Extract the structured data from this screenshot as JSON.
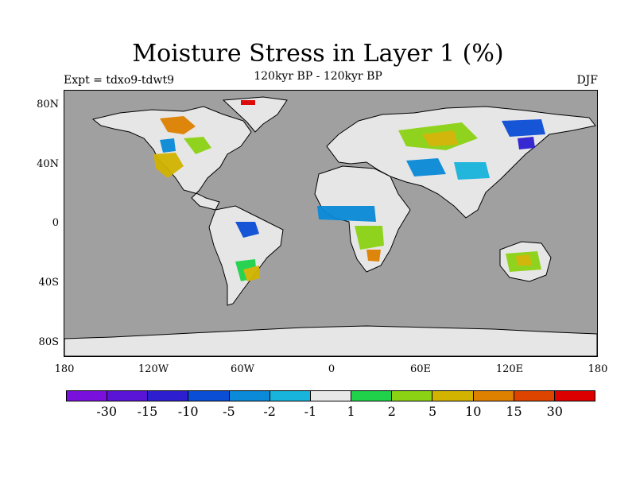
{
  "title": "Moisture Stress in Layer 1 (%)",
  "subtitle": "120kyr BP - 120kyr BP",
  "experiment": "Expt = tdxo9-tdwt9",
  "season": "DJF",
  "ocean_color": "#a0a0a0",
  "land_color": "#e6e6e6",
  "yticks": [
    "80N",
    "40N",
    "0",
    "40S",
    "80S"
  ],
  "xticks": [
    "180",
    "120W",
    "60W",
    "0",
    "60E",
    "120E",
    "180"
  ],
  "colorbar": {
    "colors": [
      "#7a10dc",
      "#5a14d6",
      "#2d1fd0",
      "#0a4ed6",
      "#0a8ad8",
      "#18b4dc",
      "#e8e8e8",
      "#1fd24a",
      "#8cd214",
      "#d2b400",
      "#de8000",
      "#dc4400",
      "#dc0000"
    ],
    "labels": [
      "-30",
      "-15",
      "-10",
      "-5",
      "-2",
      "-1",
      "1",
      "2",
      "5",
      "10",
      "15",
      "30"
    ]
  }
}
